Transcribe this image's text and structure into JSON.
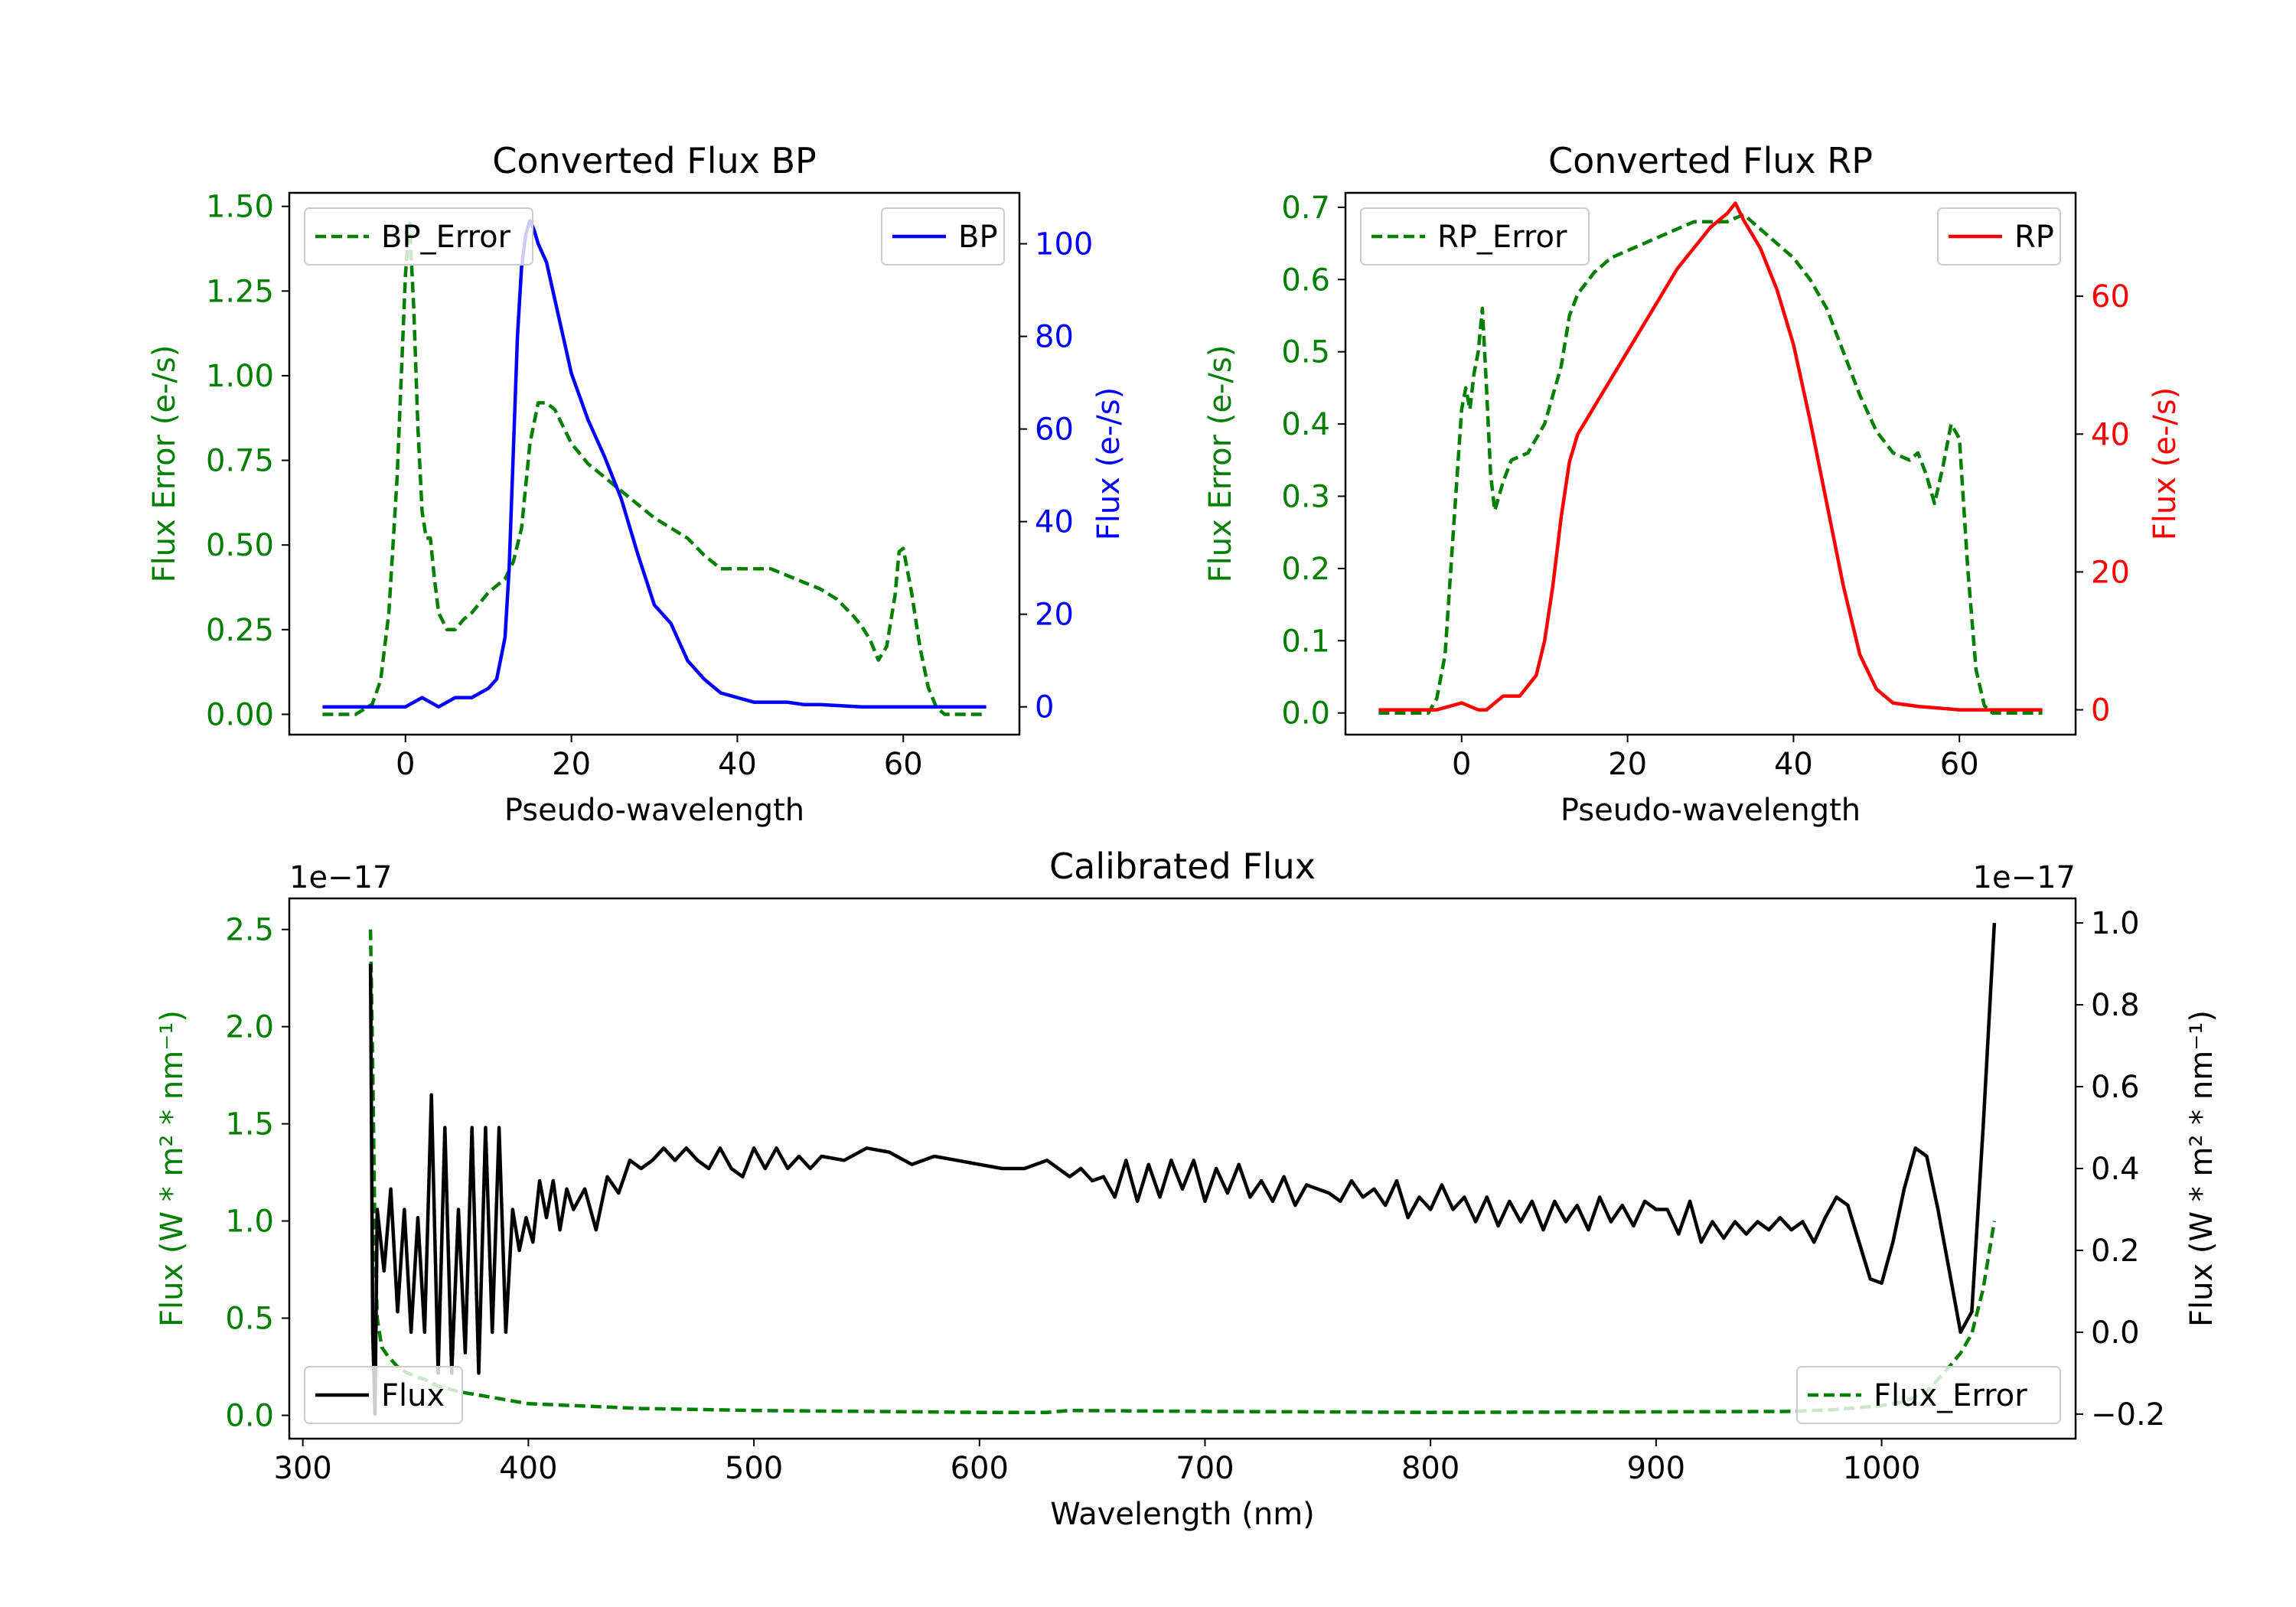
{
  "figure": {
    "background": "#ffffff"
  },
  "colors": {
    "green": "#007f00",
    "blue": "#0000ff",
    "red": "#ff0000",
    "black": "#000000"
  },
  "chart_data": [
    {
      "id": "bp",
      "type": "line",
      "title": "Converted Flux BP",
      "xlabel": "Pseudo-wavelength",
      "xlim": [
        -14,
        74
      ],
      "xticks": [
        0,
        20,
        40,
        60
      ],
      "left_axis": {
        "label": "Flux Error (e-/s)",
        "color": "#007f00",
        "ylim": [
          -0.06,
          1.54
        ],
        "ticks": [
          0.0,
          0.25,
          0.5,
          0.75,
          1.0,
          1.25,
          1.5
        ],
        "tick_labels": [
          "0.00",
          "0.25",
          "0.50",
          "0.75",
          "1.00",
          "1.25",
          "1.50"
        ]
      },
      "right_axis": {
        "label": "Flux (e-/s)",
        "color": "#0000ff",
        "ylim": [
          -6,
          111
        ],
        "ticks": [
          0,
          20,
          40,
          60,
          80,
          100
        ],
        "tick_labels": [
          "0",
          "20",
          "40",
          "60",
          "80",
          "100"
        ]
      },
      "legends": [
        {
          "position": "upper-left",
          "entries": [
            {
              "label": "BP_Error",
              "style": "dashed",
              "color": "#007f00"
            }
          ]
        },
        {
          "position": "upper-right",
          "entries": [
            {
              "label": "BP",
              "style": "solid",
              "color": "#0000ff"
            }
          ]
        }
      ],
      "series": [
        {
          "name": "BP_Error",
          "axis": "left",
          "style": "dashed",
          "color": "#007f00",
          "x": [
            -10,
            -6,
            -4,
            -3,
            -2,
            -1,
            0,
            0.5,
            1,
            1.5,
            2,
            2.5,
            3,
            3.5,
            4,
            5,
            6,
            7,
            8,
            10,
            12,
            13,
            14,
            15,
            16,
            17,
            18,
            19,
            20,
            22,
            24,
            26,
            28,
            30,
            32,
            34,
            36,
            38,
            40,
            42,
            44,
            46,
            48,
            50,
            52,
            54,
            55,
            56,
            57,
            58,
            59,
            59.5,
            60,
            61,
            62,
            63,
            64,
            65,
            70
          ],
          "y": [
            0.0,
            0.0,
            0.03,
            0.1,
            0.3,
            0.7,
            1.3,
            1.45,
            1.2,
            0.85,
            0.6,
            0.52,
            0.52,
            0.4,
            0.3,
            0.25,
            0.25,
            0.28,
            0.3,
            0.36,
            0.4,
            0.45,
            0.55,
            0.8,
            0.92,
            0.92,
            0.9,
            0.85,
            0.8,
            0.74,
            0.7,
            0.66,
            0.62,
            0.58,
            0.55,
            0.52,
            0.47,
            0.43,
            0.43,
            0.43,
            0.43,
            0.41,
            0.39,
            0.37,
            0.34,
            0.29,
            0.26,
            0.22,
            0.16,
            0.2,
            0.35,
            0.48,
            0.49,
            0.36,
            0.2,
            0.08,
            0.02,
            0.0,
            0.0
          ]
        },
        {
          "name": "BP",
          "axis": "right",
          "style": "solid",
          "color": "#0000ff",
          "x": [
            -10,
            -5,
            -2,
            0,
            2,
            4,
            6,
            8,
            10,
            11,
            12,
            12.5,
            13,
            13.5,
            14,
            14.5,
            15,
            15.5,
            16,
            17,
            18,
            19,
            20,
            22,
            24,
            26,
            28,
            30,
            32,
            34,
            36,
            38,
            40,
            42,
            44,
            46,
            48,
            50,
            55,
            60,
            65,
            70
          ],
          "y": [
            0,
            0,
            0,
            0,
            2,
            0,
            2,
            2,
            4,
            6,
            15,
            30,
            55,
            80,
            95,
            102,
            105,
            103,
            100,
            96,
            88,
            80,
            72,
            62,
            54,
            45,
            33,
            22,
            18,
            10,
            6,
            3,
            2,
            1,
            1,
            1,
            0.5,
            0.5,
            0,
            0,
            0,
            0
          ]
        }
      ]
    },
    {
      "id": "rp",
      "type": "line",
      "title": "Converted Flux RP",
      "xlabel": "Pseudo-wavelength",
      "xlim": [
        -14,
        74
      ],
      "xticks": [
        0,
        20,
        40,
        60
      ],
      "left_axis": {
        "label": "Flux Error (e-/s)",
        "color": "#007f00",
        "ylim": [
          -0.03,
          0.72
        ],
        "ticks": [
          0.0,
          0.1,
          0.2,
          0.3,
          0.4,
          0.5,
          0.6,
          0.7
        ],
        "tick_labels": [
          "0.0",
          "0.1",
          "0.2",
          "0.3",
          "0.4",
          "0.5",
          "0.6",
          "0.7"
        ]
      },
      "right_axis": {
        "label": "Flux (e-/s)",
        "color": "#ff0000",
        "ylim": [
          -3.6,
          75
        ],
        "ticks": [
          0,
          20,
          40,
          60
        ],
        "tick_labels": [
          "0",
          "20",
          "40",
          "60"
        ]
      },
      "legends": [
        {
          "position": "upper-left",
          "entries": [
            {
              "label": "RP_Error",
              "style": "dashed",
              "color": "#007f00"
            }
          ]
        },
        {
          "position": "upper-right",
          "entries": [
            {
              "label": "RP",
              "style": "solid",
              "color": "#ff0000"
            }
          ]
        }
      ],
      "series": [
        {
          "name": "RP_Error",
          "axis": "left",
          "style": "dashed",
          "color": "#007f00",
          "x": [
            -10,
            -4,
            -3,
            -2,
            -1,
            0,
            0.5,
            1,
            1.5,
            2,
            2.5,
            3,
            3.5,
            4,
            5,
            6,
            8,
            10,
            12,
            13,
            14,
            16,
            18,
            20,
            22,
            24,
            26,
            28,
            30,
            32,
            34,
            36,
            38,
            40,
            42,
            44,
            46,
            48,
            50,
            52,
            54,
            55,
            56,
            57,
            58,
            59,
            60,
            61,
            62,
            63,
            64,
            70
          ],
          "y": [
            0.0,
            0.0,
            0.02,
            0.08,
            0.25,
            0.42,
            0.45,
            0.42,
            0.47,
            0.5,
            0.56,
            0.45,
            0.33,
            0.28,
            0.32,
            0.35,
            0.36,
            0.4,
            0.48,
            0.55,
            0.58,
            0.61,
            0.63,
            0.64,
            0.65,
            0.66,
            0.67,
            0.68,
            0.68,
            0.68,
            0.69,
            0.67,
            0.65,
            0.63,
            0.6,
            0.56,
            0.5,
            0.44,
            0.39,
            0.36,
            0.35,
            0.36,
            0.33,
            0.29,
            0.34,
            0.4,
            0.38,
            0.2,
            0.06,
            0.01,
            0.0,
            0.0
          ]
        },
        {
          "name": "RP",
          "axis": "right",
          "style": "solid",
          "color": "#ff0000",
          "x": [
            -10,
            -5,
            -3,
            0,
            2,
            3,
            5,
            7,
            9,
            10,
            11,
            12,
            13,
            14,
            15,
            16,
            18,
            20,
            22,
            24,
            26,
            28,
            30,
            32,
            33,
            34,
            35,
            36,
            38,
            40,
            42,
            44,
            46,
            48,
            50,
            52,
            55,
            60,
            65,
            70
          ],
          "y": [
            0,
            0,
            0,
            1,
            0,
            0,
            2,
            2,
            5,
            10,
            18,
            28,
            36,
            40,
            42,
            44,
            48,
            52,
            56,
            60,
            64,
            67,
            70,
            72,
            73.5,
            71,
            69,
            67,
            61,
            53,
            42,
            30,
            18,
            8,
            3,
            1,
            0.5,
            0,
            0,
            0
          ]
        }
      ]
    },
    {
      "id": "calibrated",
      "type": "line",
      "title": "Calibrated Flux",
      "xlabel": "Wavelength (nm)",
      "xlim": [
        294,
        1086
      ],
      "xticks": [
        300,
        400,
        500,
        600,
        700,
        800,
        900,
        1000
      ],
      "left_axis": {
        "label": "Flux (W * m² * nm⁻¹)",
        "color": "#007f00",
        "offset_text": "1e−17",
        "ylim": [
          -0.12,
          2.66
        ],
        "ticks": [
          0.0,
          0.5,
          1.0,
          1.5,
          2.0,
          2.5
        ],
        "tick_labels": [
          "0.0",
          "0.5",
          "1.0",
          "1.5",
          "2.0",
          "2.5"
        ]
      },
      "right_axis": {
        "label": "Flux (W * m² * nm⁻¹)",
        "color": "#000000",
        "offset_text": "1e−17",
        "ylim": [
          -0.26,
          1.06
        ],
        "ticks": [
          -0.2,
          0.0,
          0.2,
          0.4,
          0.6,
          0.8,
          1.0
        ],
        "tick_labels": [
          "−0.2",
          "0.0",
          "0.2",
          "0.4",
          "0.6",
          "0.8",
          "1.0"
        ]
      },
      "legends": [
        {
          "position": "lower-left",
          "entries": [
            {
              "label": "Flux",
              "style": "solid",
              "color": "#000000"
            }
          ]
        },
        {
          "position": "lower-right",
          "entries": [
            {
              "label": "Flux_Error",
              "style": "dashed",
              "color": "#007f00"
            }
          ]
        }
      ],
      "series": [
        {
          "name": "Flux_Error",
          "axis": "left",
          "style": "dashed",
          "color": "#007f00",
          "x": [
            330,
            331,
            332,
            333,
            335,
            338,
            342,
            346,
            350,
            355,
            360,
            370,
            380,
            390,
            400,
            420,
            450,
            500,
            550,
            600,
            630,
            640,
            700,
            800,
            900,
            960,
            980,
            1000,
            1010,
            1020,
            1030,
            1035,
            1040,
            1045,
            1050
          ],
          "y": [
            2.5,
            1.8,
            0.9,
            0.5,
            0.35,
            0.3,
            0.25,
            0.22,
            0.2,
            0.18,
            0.15,
            0.12,
            0.1,
            0.08,
            0.06,
            0.05,
            0.035,
            0.025,
            0.02,
            0.015,
            0.015,
            0.025,
            0.02,
            0.015,
            0.018,
            0.02,
            0.03,
            0.05,
            0.07,
            0.12,
            0.25,
            0.32,
            0.42,
            0.65,
            1.0
          ]
        },
        {
          "name": "Flux",
          "axis": "right",
          "style": "solid",
          "color": "#000000",
          "x": [
            330,
            331,
            332,
            333,
            336,
            339,
            342,
            345,
            348,
            351,
            354,
            357,
            360,
            363,
            366,
            369,
            372,
            375,
            378,
            381,
            384,
            387,
            390,
            393,
            396,
            399,
            402,
            405,
            408,
            411,
            414,
            417,
            420,
            425,
            430,
            435,
            440,
            445,
            450,
            455,
            460,
            465,
            470,
            475,
            480,
            485,
            490,
            495,
            500,
            505,
            510,
            515,
            520,
            525,
            530,
            540,
            550,
            560,
            570,
            580,
            590,
            600,
            610,
            620,
            630,
            635,
            640,
            645,
            650,
            655,
            660,
            665,
            670,
            675,
            680,
            685,
            690,
            695,
            700,
            705,
            710,
            715,
            720,
            725,
            730,
            735,
            740,
            745,
            750,
            755,
            760,
            765,
            770,
            775,
            780,
            785,
            790,
            795,
            800,
            805,
            810,
            815,
            820,
            825,
            830,
            835,
            840,
            845,
            850,
            855,
            860,
            865,
            870,
            875,
            880,
            885,
            890,
            895,
            900,
            905,
            910,
            915,
            920,
            925,
            930,
            935,
            940,
            945,
            950,
            955,
            960,
            965,
            970,
            975,
            980,
            985,
            990,
            995,
            1000,
            1005,
            1010,
            1015,
            1020,
            1025,
            1030,
            1035,
            1040,
            1045,
            1050
          ],
          "y": [
            0.9,
            0.0,
            -0.2,
            0.3,
            0.15,
            0.35,
            0.05,
            0.3,
            0.0,
            0.28,
            0.0,
            0.58,
            -0.1,
            0.5,
            -0.1,
            0.3,
            -0.05,
            0.5,
            -0.1,
            0.5,
            0.0,
            0.5,
            0.0,
            0.3,
            0.2,
            0.28,
            0.22,
            0.37,
            0.28,
            0.37,
            0.25,
            0.35,
            0.3,
            0.35,
            0.25,
            0.38,
            0.34,
            0.42,
            0.4,
            0.42,
            0.45,
            0.42,
            0.45,
            0.42,
            0.4,
            0.45,
            0.4,
            0.38,
            0.45,
            0.4,
            0.45,
            0.4,
            0.43,
            0.4,
            0.43,
            0.42,
            0.45,
            0.44,
            0.41,
            0.43,
            0.42,
            0.41,
            0.4,
            0.4,
            0.42,
            0.4,
            0.38,
            0.4,
            0.37,
            0.38,
            0.33,
            0.42,
            0.32,
            0.41,
            0.33,
            0.42,
            0.35,
            0.42,
            0.32,
            0.4,
            0.34,
            0.41,
            0.33,
            0.37,
            0.32,
            0.38,
            0.31,
            0.36,
            0.35,
            0.34,
            0.32,
            0.37,
            0.33,
            0.35,
            0.31,
            0.37,
            0.28,
            0.33,
            0.3,
            0.36,
            0.3,
            0.33,
            0.27,
            0.33,
            0.26,
            0.32,
            0.27,
            0.32,
            0.25,
            0.32,
            0.27,
            0.31,
            0.25,
            0.33,
            0.27,
            0.31,
            0.26,
            0.32,
            0.3,
            0.3,
            0.24,
            0.32,
            0.22,
            0.27,
            0.23,
            0.27,
            0.24,
            0.27,
            0.25,
            0.28,
            0.25,
            0.27,
            0.22,
            0.28,
            0.33,
            0.31,
            0.22,
            0.13,
            0.12,
            0.22,
            0.35,
            0.45,
            0.43,
            0.3,
            0.15,
            0.0,
            0.05,
            0.5,
            1.0
          ]
        }
      ]
    }
  ]
}
